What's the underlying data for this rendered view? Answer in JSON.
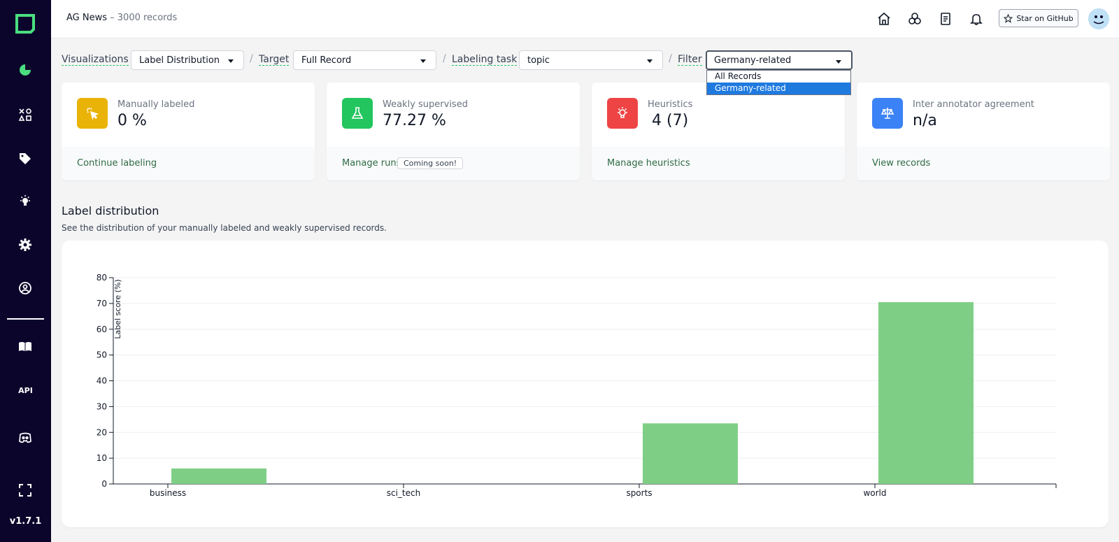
{
  "app": {
    "title": "AG News",
    "subtitle": "3000 records",
    "version": "v1.7.1",
    "api_label": "API"
  },
  "header": {
    "github_label": "Star on GitHub"
  },
  "filters": {
    "visualizations": {
      "label": "Visualizations",
      "value": "Label Distribution"
    },
    "target": {
      "label": "Target",
      "value": "Full Record"
    },
    "labeling_task": {
      "label": "Labeling task",
      "value": "topic"
    },
    "filter": {
      "label": "Filter",
      "value": "Germany-related",
      "options": [
        "All Records",
        "Germany-related"
      ]
    }
  },
  "cards": [
    {
      "label": "Manually labeled",
      "value": "0 %",
      "link": "Continue labeling",
      "color": "#eab308"
    },
    {
      "label": "Weakly supervised",
      "value": "77.27 %",
      "link": "Manage runs",
      "badge": "Coming soon!",
      "color": "#22c55e"
    },
    {
      "label": "Heuristics",
      "value": "4 (7)",
      "link": "Manage heuristics",
      "color": "#ef4444"
    },
    {
      "label": "Inter annotator agreement",
      "value": "n/a",
      "link": "View records",
      "color": "#3b82f6"
    }
  ],
  "section": {
    "title": "Label distribution",
    "subtitle": "See the distribution of your manually labeled and weakly supervised records."
  },
  "chart_data": {
    "type": "bar",
    "categories": [
      "business",
      "sci_tech",
      "sports",
      "world"
    ],
    "series": [
      {
        "name": "Weakly supervised",
        "values": [
          6,
          0,
          23.5,
          70.5
        ],
        "color": "#7ecf85"
      }
    ],
    "ylabel": "Label score (%)",
    "ylim": [
      0,
      80
    ],
    "yticks": [
      0,
      10,
      20,
      30,
      40,
      50,
      60,
      70,
      80
    ],
    "grid": true
  }
}
